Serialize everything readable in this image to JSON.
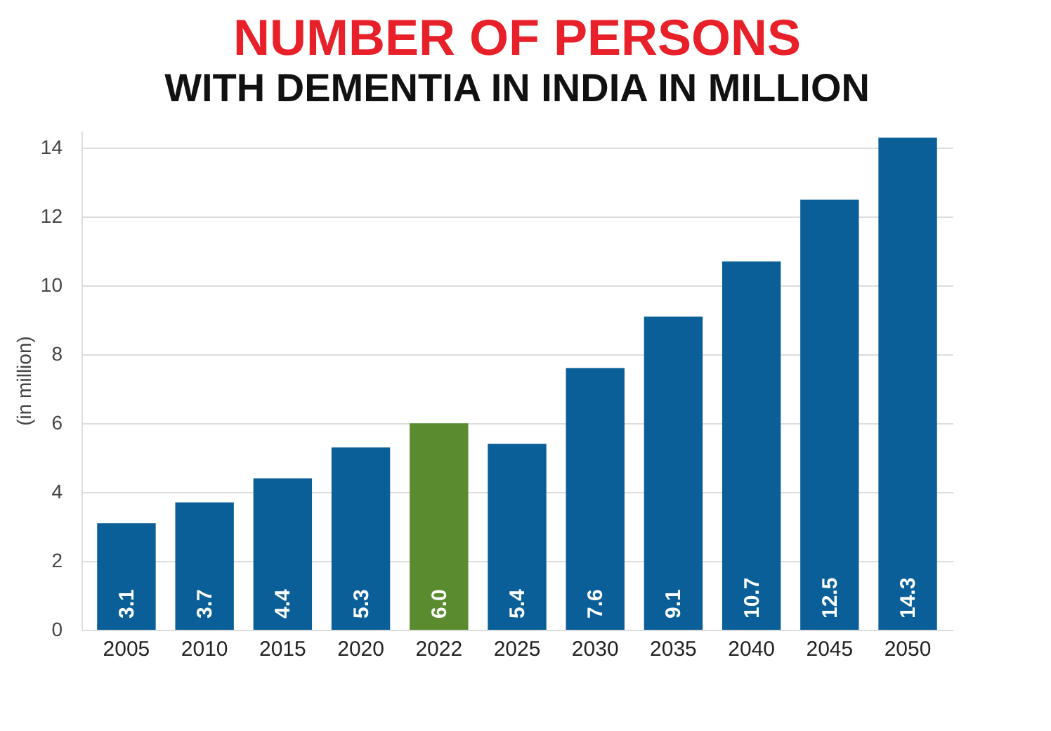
{
  "chart_data": {
    "type": "bar",
    "title": "NUMBER OF PERSONS",
    "subtitle": "WITH DEMENTIA IN INDIA IN MILLION",
    "ylabel": "(in million)",
    "categories": [
      "2005",
      "2010",
      "2015",
      "2020",
      "2022",
      "2025",
      "2030",
      "2035",
      "2040",
      "2045",
      "2050"
    ],
    "values": [
      3.1,
      3.7,
      4.4,
      5.3,
      6.0,
      5.4,
      7.6,
      9.1,
      10.7,
      12.5,
      14.3
    ],
    "value_labels": [
      "3.1",
      "3.7",
      "4.4",
      "5.3",
      "6.0",
      "5.4",
      "7.6",
      "9.1",
      "10.7",
      "12.5",
      "14.3"
    ],
    "colors": [
      "#0b5f98",
      "#0b5f98",
      "#0b5f98",
      "#0b5f98",
      "#5a8c2f",
      "#0b5f98",
      "#0b5f98",
      "#0b5f98",
      "#0b5f98",
      "#0b5f98",
      "#0b5f98"
    ],
    "ylim": [
      0,
      14.5
    ],
    "yticks": [
      0,
      2,
      4,
      6,
      8,
      10,
      12,
      14
    ],
    "grid": "y"
  }
}
